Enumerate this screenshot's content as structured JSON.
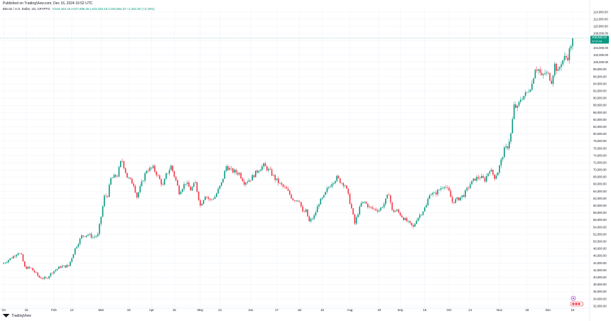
{
  "header": {
    "published": "Published on TradingView.com, Dec 16, 2024 16:52 UTC",
    "symbol": "Bitcoin / U.S. Dollar, 1D, CRYPTO",
    "ohlc": "O104,453.15  H107,896.35  L103,326.18  C106,694.22  +2,281.50 (+2.19%)"
  },
  "footer": {
    "brand": "TradingView"
  },
  "price_tag": {
    "price": "106,694.22",
    "countdown": "07:07:44"
  },
  "colors": {
    "up": "#089981",
    "down": "#f23645",
    "grid": "#f0f3fa",
    "axis_text": "#131722"
  },
  "chart_data": {
    "type": "candlestick",
    "y_axis": {
      "min": 32000,
      "max": 114000,
      "step": 2000,
      "tick_labels": [
        "114,000.00",
        "112,000.00",
        "110,000.00",
        "108,000.00",
        "106,000.00",
        "104,000.00",
        "102,000.00",
        "100,000.00",
        "98,000.00",
        "96,000.00",
        "94,000.00",
        "92,000.00",
        "90,000.00",
        "88,000.00",
        "86,000.00",
        "84,000.00",
        "82,000.00",
        "80,000.00",
        "78,000.00",
        "76,000.00",
        "74,000.00",
        "72,000.00",
        "70,000.00",
        "68,000.00",
        "66,000.00",
        "64,000.00",
        "62,000.00",
        "60,000.00",
        "58,000.00",
        "56,000.00",
        "54,000.00",
        "52,000.00",
        "50,000.00",
        "48,000.00",
        "46,000.00",
        "44,000.00",
        "42,000.00",
        "40,000.00",
        "38,000.00",
        "36,000.00",
        "34,000.00",
        "32,000.00"
      ]
    },
    "x_axis": {
      "tick_labels": [
        {
          "label": "'24",
          "day": 0
        },
        {
          "label": "15",
          "day": 14
        },
        {
          "label": "Feb",
          "day": 31
        },
        {
          "label": "12",
          "day": 42
        },
        {
          "label": "Mar",
          "day": 60
        },
        {
          "label": "18",
          "day": 77
        },
        {
          "label": "Apr",
          "day": 91
        },
        {
          "label": "15",
          "day": 105
        },
        {
          "label": "May",
          "day": 121
        },
        {
          "label": "13",
          "day": 133
        },
        {
          "label": "Jun",
          "day": 152
        },
        {
          "label": "17",
          "day": 168
        },
        {
          "label": "Jul",
          "day": 182
        },
        {
          "label": "15",
          "day": 196
        },
        {
          "label": "Aug",
          "day": 213
        },
        {
          "label": "19",
          "day": 231
        },
        {
          "label": "Sep",
          "day": 244
        },
        {
          "label": "16",
          "day": 259
        },
        {
          "label": "Oct",
          "day": 274
        },
        {
          "label": "14",
          "day": 287
        },
        {
          "label": "Nov",
          "day": 305
        },
        {
          "label": "18",
          "day": 322
        },
        {
          "label": "Dec",
          "day": 335
        },
        {
          "label": "16",
          "day": 350
        }
      ]
    },
    "anchors": [
      [
        0,
        44000
      ],
      [
        5,
        45500
      ],
      [
        9,
        47000
      ],
      [
        11,
        46000
      ],
      [
        13,
        42800
      ],
      [
        17,
        42500
      ],
      [
        22,
        40000
      ],
      [
        26,
        39600
      ],
      [
        30,
        41500
      ],
      [
        35,
        43000
      ],
      [
        40,
        43200
      ],
      [
        44,
        48000
      ],
      [
        48,
        51500
      ],
      [
        52,
        52000
      ],
      [
        55,
        51200
      ],
      [
        58,
        51800
      ],
      [
        60,
        57000
      ],
      [
        62,
        62500
      ],
      [
        64,
        63000
      ],
      [
        66,
        67500
      ],
      [
        70,
        68500
      ],
      [
        72,
        72000
      ],
      [
        73,
        72500
      ],
      [
        76,
        68000
      ],
      [
        80,
        66000
      ],
      [
        82,
        62500
      ],
      [
        86,
        67500
      ],
      [
        88,
        70000
      ],
      [
        92,
        70500
      ],
      [
        94,
        69000
      ],
      [
        98,
        65500
      ],
      [
        100,
        68500
      ],
      [
        103,
        71000
      ],
      [
        106,
        67000
      ],
      [
        108,
        63800
      ],
      [
        112,
        66500
      ],
      [
        115,
        64500
      ],
      [
        118,
        66300
      ],
      [
        121,
        60000
      ],
      [
        124,
        63000
      ],
      [
        127,
        61500
      ],
      [
        130,
        62500
      ],
      [
        134,
        66200
      ],
      [
        137,
        71000
      ],
      [
        140,
        69800
      ],
      [
        145,
        69000
      ],
      [
        148,
        66500
      ],
      [
        152,
        67500
      ],
      [
        157,
        70200
      ],
      [
        160,
        71200
      ],
      [
        164,
        69500
      ],
      [
        167,
        67500
      ],
      [
        170,
        66000
      ],
      [
        174,
        64500
      ],
      [
        178,
        61800
      ],
      [
        182,
        61500
      ],
      [
        184,
        58000
      ],
      [
        186,
        58500
      ],
      [
        188,
        55500
      ],
      [
        191,
        57000
      ],
      [
        194,
        60800
      ],
      [
        197,
        62500
      ],
      [
        199,
        64500
      ],
      [
        202,
        66500
      ],
      [
        205,
        67800
      ],
      [
        207,
        66800
      ],
      [
        210,
        65800
      ],
      [
        212,
        62800
      ],
      [
        214,
        59200
      ],
      [
        216,
        55000
      ],
      [
        218,
        58000
      ],
      [
        220,
        60500
      ],
      [
        222,
        61000
      ],
      [
        225,
        59500
      ],
      [
        228,
        59000
      ],
      [
        231,
        58800
      ],
      [
        234,
        60500
      ],
      [
        237,
        63500
      ],
      [
        239,
        58500
      ],
      [
        242,
        58600
      ],
      [
        246,
        56500
      ],
      [
        250,
        54800
      ],
      [
        252,
        54000
      ],
      [
        254,
        56200
      ],
      [
        257,
        58000
      ],
      [
        260,
        60000
      ],
      [
        262,
        63500
      ],
      [
        265,
        63200
      ],
      [
        268,
        64500
      ],
      [
        271,
        65800
      ],
      [
        274,
        63800
      ],
      [
        276,
        61000
      ],
      [
        280,
        62000
      ],
      [
        283,
        63000
      ],
      [
        287,
        66000
      ],
      [
        290,
        67500
      ],
      [
        293,
        68000
      ],
      [
        296,
        67200
      ],
      [
        299,
        70200
      ],
      [
        302,
        68000
      ],
      [
        304,
        69500
      ],
      [
        306,
        72500
      ],
      [
        308,
        75600
      ],
      [
        310,
        76500
      ],
      [
        312,
        80000
      ],
      [
        314,
        87800
      ],
      [
        316,
        87200
      ],
      [
        318,
        89800
      ],
      [
        322,
        91500
      ],
      [
        325,
        94000
      ],
      [
        327,
        98500
      ],
      [
        329,
        98000
      ],
      [
        331,
        95800
      ],
      [
        333,
        97000
      ],
      [
        335,
        96500
      ],
      [
        337,
        94800
      ],
      [
        339,
        99300
      ],
      [
        341,
        97300
      ],
      [
        343,
        100000
      ],
      [
        345,
        101200
      ],
      [
        347,
        101500
      ],
      [
        349,
        105000
      ],
      [
        350,
        106694
      ]
    ]
  }
}
